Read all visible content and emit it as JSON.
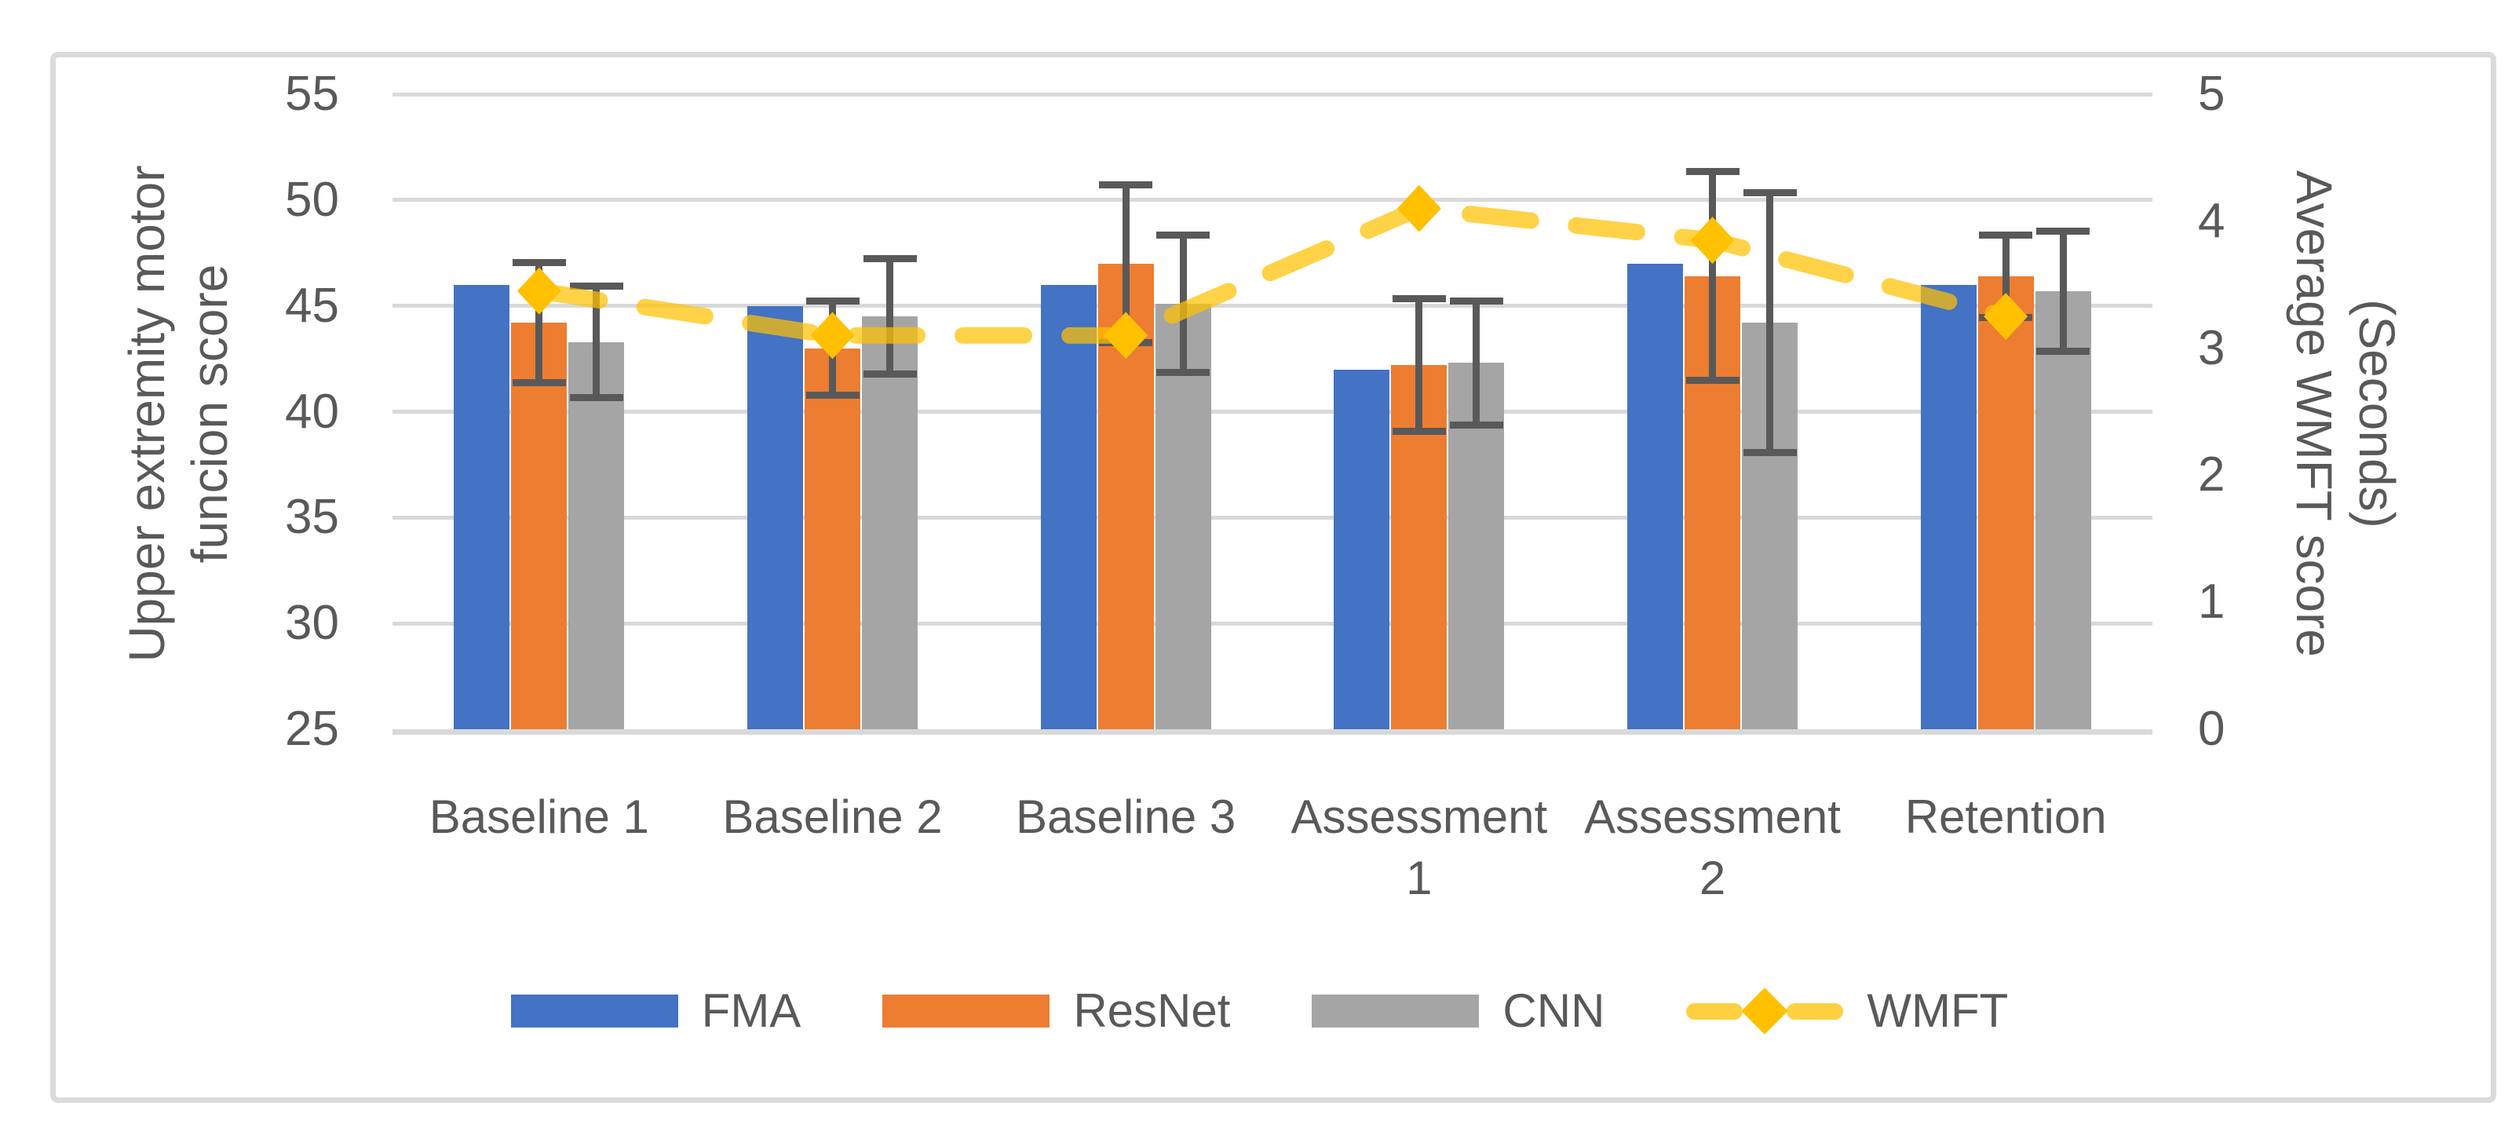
{
  "figure": {
    "background": "#FFFFFF",
    "border_color": "#DBDBDB"
  },
  "left_axis": {
    "title_line1": "Upper extremity motor",
    "title_line2": "funcion score",
    "min": 25,
    "max": 55,
    "tick_step": 5,
    "ticks": [
      "55",
      "50",
      "45",
      "40",
      "35",
      "30",
      "25"
    ]
  },
  "right_axis": {
    "title_line1": "Average WMFT score",
    "title_line2": "(Seconds)",
    "min": 0,
    "max": 5,
    "tick_step": 1,
    "ticks": [
      "5",
      "4",
      "3",
      "2",
      "1",
      "0"
    ]
  },
  "legend": {
    "items": [
      {
        "label": "FMA",
        "type": "bar",
        "color": "#4472C4"
      },
      {
        "label": "ResNet",
        "type": "bar",
        "color": "#ED7D31"
      },
      {
        "label": "CNN",
        "type": "bar",
        "color": "#A5A5A5"
      },
      {
        "label": "WMFT",
        "type": "line",
        "color": "#FFC000"
      }
    ]
  },
  "chart_data": {
    "type": "bar",
    "subtype": "grouped bars with error bars plus dashed line on secondary axis",
    "categories": [
      "Baseline 1",
      "Baseline 2",
      "Baseline 3",
      "Assessment 1",
      "Assessment 2",
      "Retention"
    ],
    "category_label_lines": [
      [
        "Baseline 1"
      ],
      [
        "Baseline 2"
      ],
      [
        "Baseline 3"
      ],
      [
        "Assessment",
        "1"
      ],
      [
        "Assessment",
        "2"
      ],
      [
        "Retention"
      ]
    ],
    "xlabel": "",
    "ylabel_left": "Upper extremity motor funcion score",
    "ylabel_right": "Average WMFT score (Seconds)",
    "left_ylim": [
      25,
      55
    ],
    "right_ylim": [
      0,
      5
    ],
    "grid": true,
    "legend_position": "bottom",
    "gridline_color": "#D9D9D9",
    "error_bar_color": "#595959",
    "series": [
      {
        "name": "FMA",
        "type": "bar",
        "axis": "left",
        "color": "#4472C4",
        "values": [
          46.0,
          45.0,
          46.0,
          42.0,
          47.0,
          46.0
        ]
      },
      {
        "name": "ResNet",
        "type": "bar",
        "axis": "left",
        "color": "#ED7D31",
        "values": [
          44.2,
          43.0,
          47.0,
          42.2,
          46.4,
          46.4
        ],
        "error": [
          3.0,
          2.4,
          3.9,
          3.3,
          5.1,
          2.1
        ]
      },
      {
        "name": "CNN",
        "type": "bar",
        "axis": "left",
        "color": "#A5A5A5",
        "values": [
          43.3,
          44.5,
          45.1,
          42.3,
          44.2,
          45.7
        ],
        "error": [
          2.8,
          2.9,
          3.4,
          3.1,
          6.3,
          3.0
        ]
      },
      {
        "name": "WMFT",
        "type": "line",
        "axis": "right",
        "color": "#FFC000",
        "marker": "diamond",
        "dashed": true,
        "values": [
          3.45,
          3.1,
          3.1,
          4.1,
          3.85,
          3.25
        ]
      }
    ]
  }
}
